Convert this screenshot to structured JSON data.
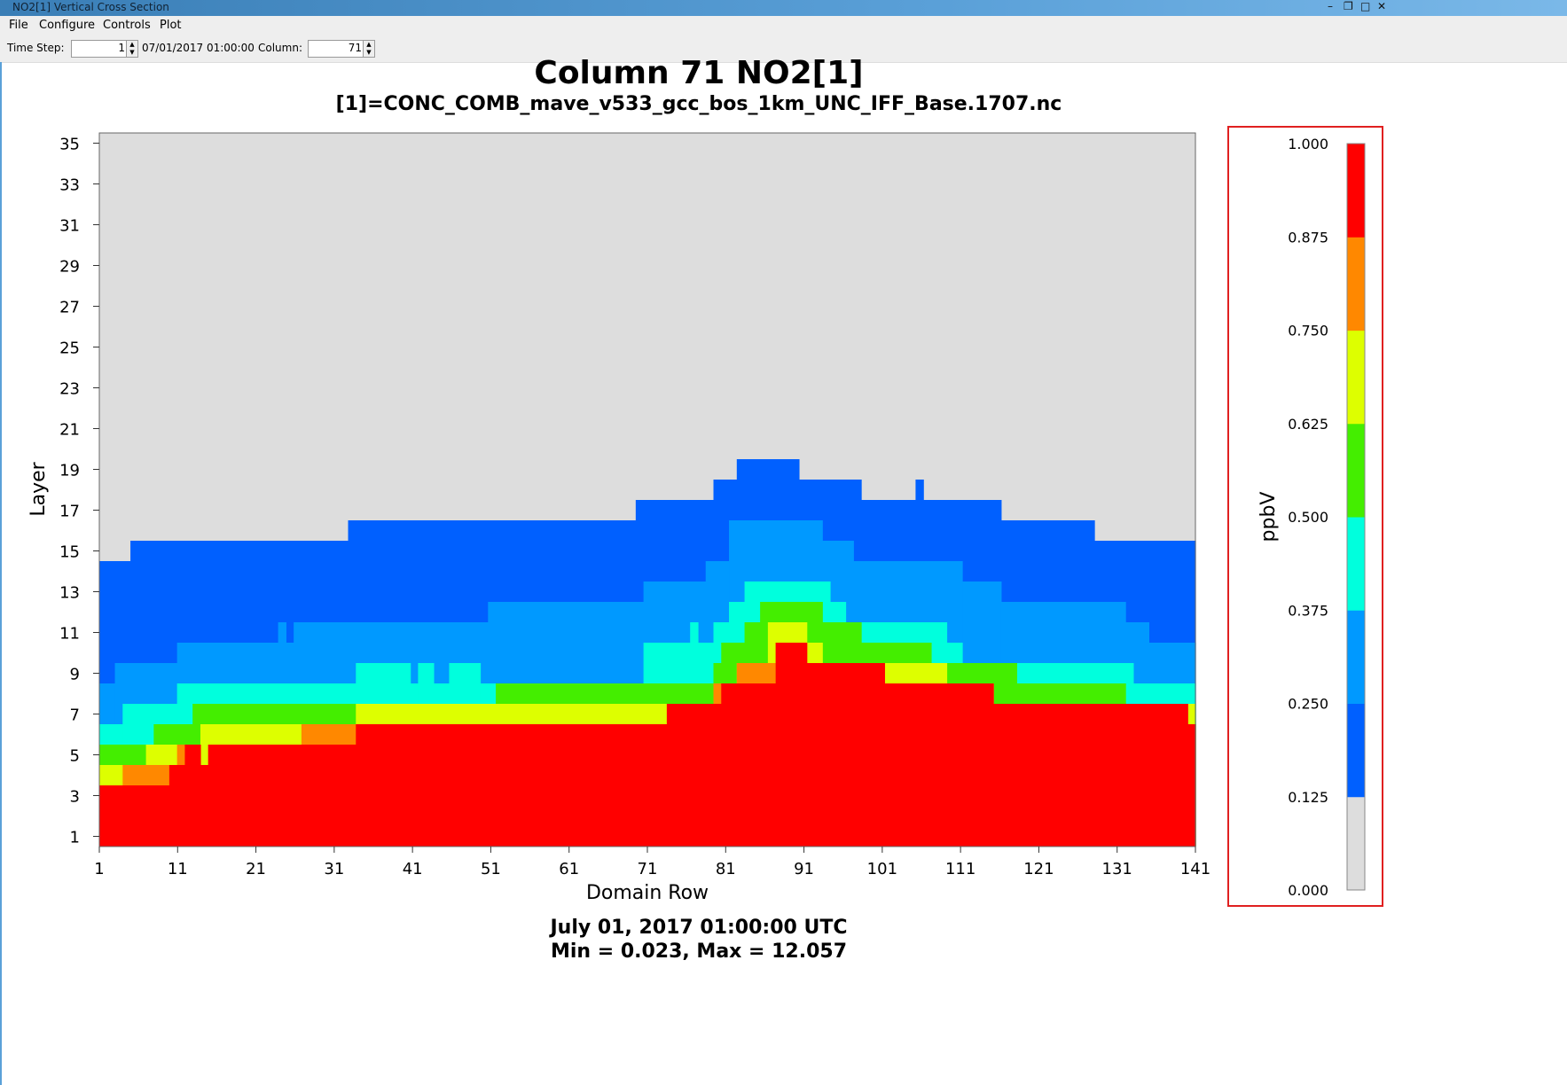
{
  "window": {
    "title": "NO2[1] Vertical Cross Section",
    "controls": [
      "–",
      "❐",
      "□",
      "✕"
    ]
  },
  "menu": [
    "File",
    "Configure",
    "Controls",
    "Plot"
  ],
  "toolbar": {
    "time_step_label": "Time Step:",
    "time_step_value": "1",
    "datetime": "07/01/2017 01:00:00",
    "column_label": "Column:",
    "column_value": "71"
  },
  "chart_data": {
    "type": "heatmap",
    "title": "Column 71 NO2[1]",
    "subtitle": "[1]=CONC_COMB_mave_v533_gcc_bos_1km_UNC_IFF_Base.1707.nc",
    "xlabel": "Domain Row",
    "ylabel": "Layer",
    "xlim": [
      1,
      141
    ],
    "ylim": [
      1,
      35
    ],
    "x_ticks": [
      "1",
      "11",
      "21",
      "31",
      "41",
      "51",
      "61",
      "71",
      "81",
      "91",
      "101",
      "111",
      "121",
      "131",
      "141"
    ],
    "y_ticks": [
      "1",
      "3",
      "5",
      "7",
      "9",
      "11",
      "13",
      "15",
      "17",
      "19",
      "21",
      "23",
      "25",
      "27",
      "29",
      "31",
      "33",
      "35"
    ],
    "footer_time": "July 01, 2017 01:00:00 UTC",
    "footer_stats": "Min = 0.023, Max = 12.057",
    "colorbar": {
      "unit": "ppbV",
      "labels": [
        "0.000",
        "0.125",
        "0.250",
        "0.375",
        "0.500",
        "0.625",
        "0.750",
        "0.875",
        "1.000"
      ],
      "colors": [
        "#dddddd",
        "#0060ff",
        "#0099ff",
        "#00ffdd",
        "#44ee00",
        "#ddff00",
        "#ff8800",
        "#ff0000"
      ]
    },
    "bands": [
      {
        "name": "top_lvl1_0.125",
        "profile": [
          [
            1,
            14
          ],
          [
            5,
            15
          ],
          [
            33,
            16
          ],
          [
            70,
            17
          ],
          [
            80,
            18
          ],
          [
            83,
            19
          ],
          [
            91,
            18
          ],
          [
            99,
            17
          ],
          [
            106,
            18
          ],
          [
            107,
            17
          ],
          [
            117,
            16
          ],
          [
            129,
            15
          ],
          [
            141,
            15
          ]
        ]
      },
      {
        "name": "top_lvl2_0.250",
        "profile": [
          [
            1,
            8
          ],
          [
            3,
            9
          ],
          [
            11,
            10
          ],
          [
            24,
            11
          ],
          [
            25,
            10
          ],
          [
            26,
            11
          ],
          [
            51,
            12
          ],
          [
            71,
            13
          ],
          [
            79,
            14
          ],
          [
            82,
            16
          ],
          [
            94,
            15
          ],
          [
            98,
            14
          ],
          [
            112,
            13
          ],
          [
            117,
            12
          ],
          [
            133,
            11
          ],
          [
            136,
            10
          ],
          [
            141,
            10
          ]
        ]
      },
      {
        "name": "top_lvl3_0.375",
        "profile": [
          [
            1,
            6
          ],
          [
            4,
            7
          ],
          [
            11,
            8
          ],
          [
            34,
            9
          ],
          [
            41,
            8
          ],
          [
            42,
            9
          ],
          [
            44,
            8
          ],
          [
            46,
            9
          ],
          [
            50,
            8
          ],
          [
            52,
            8
          ],
          [
            71,
            10
          ],
          [
            77,
            11
          ],
          [
            78,
            10
          ],
          [
            80,
            11
          ],
          [
            82,
            12
          ],
          [
            84,
            13
          ],
          [
            95,
            12
          ],
          [
            97,
            11
          ],
          [
            110,
            10
          ],
          [
            112,
            9
          ],
          [
            134,
            8
          ],
          [
            141,
            8
          ]
        ]
      },
      {
        "name": "top_lvl4_0.500",
        "profile": [
          [
            1,
            5
          ],
          [
            8,
            6
          ],
          [
            13,
            7
          ],
          [
            52,
            8
          ],
          [
            72,
            8
          ],
          [
            80,
            9
          ],
          [
            81,
            10
          ],
          [
            84,
            11
          ],
          [
            86,
            12
          ],
          [
            94,
            11
          ],
          [
            99,
            10
          ],
          [
            108,
            9
          ],
          [
            119,
            8
          ],
          [
            133,
            7
          ],
          [
            141,
            7
          ]
        ]
      },
      {
        "name": "top_lvl5_0.625",
        "profile": [
          [
            1,
            4
          ],
          [
            7,
            5
          ],
          [
            14,
            6
          ],
          [
            16,
            6
          ],
          [
            34,
            7
          ],
          [
            41,
            7
          ],
          [
            51,
            7
          ],
          [
            69,
            7
          ],
          [
            80,
            8
          ],
          [
            83,
            9
          ],
          [
            87,
            11
          ],
          [
            92,
            10
          ],
          [
            94,
            9
          ],
          [
            100,
            9
          ],
          [
            110,
            8
          ],
          [
            116,
            7
          ],
          [
            126,
            7
          ],
          [
            141,
            7
          ]
        ]
      },
      {
        "name": "top_lvl6_0.750",
        "profile": [
          [
            1,
            3
          ],
          [
            4,
            4
          ],
          [
            10,
            4
          ],
          [
            11,
            5
          ],
          [
            14,
            4
          ],
          [
            15,
            5
          ],
          [
            16,
            5
          ],
          [
            27,
            6
          ],
          [
            34,
            6
          ],
          [
            41,
            6
          ],
          [
            50,
            6
          ],
          [
            69,
            6
          ],
          [
            74,
            7
          ],
          [
            80,
            8
          ],
          [
            83,
            9
          ],
          [
            88,
            10
          ],
          [
            92,
            9
          ],
          [
            102,
            8
          ],
          [
            113,
            8
          ],
          [
            116,
            7
          ],
          [
            128,
            6
          ],
          [
            141,
            6
          ]
        ]
      },
      {
        "name": "top_lvl7_0.875",
        "profile": [
          [
            1,
            3
          ],
          [
            4,
            3
          ],
          [
            10,
            4
          ],
          [
            12,
            5
          ],
          [
            14,
            4
          ],
          [
            15,
            5
          ],
          [
            16,
            5
          ],
          [
            34,
            6
          ],
          [
            42,
            6
          ],
          [
            50,
            6
          ],
          [
            52,
            6
          ],
          [
            74,
            7
          ],
          [
            81,
            8
          ],
          [
            88,
            10
          ],
          [
            92,
            9
          ],
          [
            102,
            8
          ],
          [
            116,
            7
          ],
          [
            141,
            6
          ]
        ]
      }
    ]
  }
}
